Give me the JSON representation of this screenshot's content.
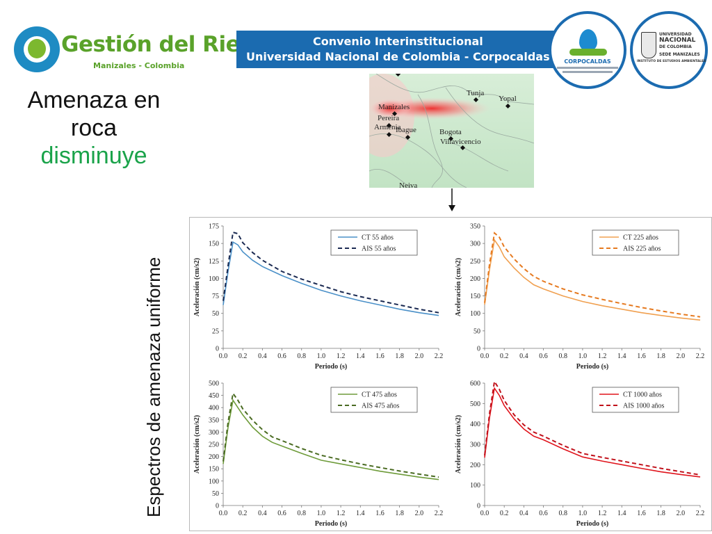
{
  "header": {
    "logo_title": "Gestión del Riesgo",
    "logo_subtitle": "Manizales - Colombia",
    "banner_line1": "Convenio Interinstitucional",
    "banner_line2": "Universidad Nacional de Colombia - Corpocaldas",
    "corpocaldas_label": "CORPOCALDAS",
    "unal_line1": "UNIVERSIDAD",
    "unal_line2": "NACIONAL",
    "unal_line3": "DE COLOMBIA",
    "unal_line4": "SEDE MANIZALES",
    "unal_line5": "INSTITUTO DE ESTUDIOS AMBIENTALES"
  },
  "headline": {
    "line1": "Amenaza en",
    "line2": "roca",
    "line3": "disminuye"
  },
  "vertical_label": "Espectros de amenaza uniforme",
  "map": {
    "cities": [
      "Tunja",
      "Yopal",
      "Manizales",
      "Pereira",
      "Armenia",
      "Ibague",
      "Bogota",
      "Villavicencio",
      "Neiva"
    ]
  },
  "colors": {
    "headline_green": "#1aa34a",
    "banner_blue": "#1b6bb0",
    "logo_green": "#5aa22a"
  },
  "chart_data": [
    {
      "type": "line",
      "xlabel": "Periodo (s)",
      "ylabel": "Aceleración (cm/s2)",
      "xlim": [
        0,
        2.2
      ],
      "ylim": [
        0,
        175
      ],
      "xticks": [
        "0.0",
        "0.2",
        "0.4",
        "0.6",
        "0.8",
        "1.0",
        "1.2",
        "1.4",
        "1.6",
        "1.8",
        "2.0",
        "2.2"
      ],
      "yticks": [
        "0",
        "25",
        "50",
        "75",
        "100",
        "125",
        "150",
        "175"
      ],
      "legend_position": "top-right",
      "series": [
        {
          "name": "CT 55 años",
          "color": "#4a90c8",
          "style": "solid",
          "x": [
            0,
            0.05,
            0.1,
            0.15,
            0.2,
            0.3,
            0.4,
            0.6,
            0.8,
            1.0,
            1.2,
            1.4,
            1.6,
            1.8,
            2.0,
            2.2
          ],
          "y": [
            62,
            110,
            152,
            148,
            138,
            126,
            117,
            104,
            93,
            83,
            75,
            68,
            62,
            56,
            51,
            47
          ]
        },
        {
          "name": "AIS 55 años",
          "color": "#1b2a52",
          "style": "dashed",
          "x": [
            0,
            0.05,
            0.1,
            0.15,
            0.2,
            0.3,
            0.4,
            0.6,
            0.8,
            1.0,
            1.2,
            1.4,
            1.6,
            1.8,
            2.0,
            2.2
          ],
          "y": [
            68,
            118,
            166,
            164,
            151,
            137,
            126,
            110,
            99,
            90,
            81,
            74,
            68,
            62,
            56,
            51
          ]
        }
      ]
    },
    {
      "type": "line",
      "xlabel": "Periodo (s)",
      "ylabel": "Aceleración (cm/s2)",
      "xlim": [
        0,
        2.2
      ],
      "ylim": [
        0,
        350
      ],
      "xticks": [
        "0.0",
        "0.2",
        "0.4",
        "0.6",
        "0.8",
        "1.0",
        "1.2",
        "1.4",
        "1.6",
        "1.8",
        "2.0",
        "2.2"
      ],
      "yticks": [
        "0",
        "50",
        "100",
        "150",
        "200",
        "250",
        "300",
        "350"
      ],
      "legend_position": "top-right",
      "series": [
        {
          "name": "CT 225 años",
          "color": "#f0a050",
          "style": "solid",
          "x": [
            0,
            0.05,
            0.1,
            0.15,
            0.2,
            0.3,
            0.4,
            0.5,
            0.6,
            0.8,
            1.0,
            1.2,
            1.4,
            1.6,
            1.8,
            2.0,
            2.2
          ],
          "y": [
            125,
            225,
            310,
            290,
            262,
            230,
            203,
            182,
            170,
            150,
            134,
            122,
            112,
            102,
            94,
            87,
            81
          ]
        },
        {
          "name": "AIS 225 años",
          "color": "#e67a20",
          "style": "dashed",
          "x": [
            0,
            0.05,
            0.1,
            0.15,
            0.2,
            0.3,
            0.4,
            0.5,
            0.6,
            0.8,
            1.0,
            1.2,
            1.4,
            1.6,
            1.8,
            2.0,
            2.2
          ],
          "y": [
            130,
            240,
            330,
            318,
            290,
            256,
            228,
            206,
            192,
            170,
            153,
            140,
            128,
            117,
            107,
            98,
            90
          ]
        }
      ]
    },
    {
      "type": "line",
      "xlabel": "Periodo (s)",
      "ylabel": "Aceleración (cm/s2)",
      "xlim": [
        0,
        2.2
      ],
      "ylim": [
        0,
        500
      ],
      "xticks": [
        "0.0",
        "0.2",
        "0.4",
        "0.6",
        "0.8",
        "1.0",
        "1.2",
        "1.4",
        "1.6",
        "1.8",
        "2.0",
        "2.2"
      ],
      "yticks": [
        "0",
        "50",
        "100",
        "150",
        "200",
        "250",
        "300",
        "350",
        "400",
        "450",
        "500"
      ],
      "legend_position": "top-right",
      "series": [
        {
          "name": "CT 475 años",
          "color": "#6e9b3a",
          "style": "solid",
          "x": [
            0,
            0.05,
            0.1,
            0.15,
            0.2,
            0.3,
            0.4,
            0.5,
            0.6,
            0.8,
            1.0,
            1.2,
            1.4,
            1.6,
            1.8,
            2.0,
            2.2
          ],
          "y": [
            170,
            320,
            430,
            400,
            370,
            320,
            283,
            258,
            243,
            213,
            185,
            170,
            155,
            140,
            128,
            116,
            106
          ]
        },
        {
          "name": "AIS 475 años",
          "color": "#4a6b22",
          "style": "dashed",
          "x": [
            0,
            0.05,
            0.1,
            0.15,
            0.2,
            0.3,
            0.4,
            0.5,
            0.6,
            0.8,
            1.0,
            1.2,
            1.4,
            1.6,
            1.8,
            2.0,
            2.2
          ],
          "y": [
            180,
            340,
            458,
            430,
            395,
            348,
            310,
            280,
            265,
            233,
            205,
            187,
            170,
            155,
            141,
            128,
            116
          ]
        }
      ]
    },
    {
      "type": "line",
      "xlabel": "Periodo (s)",
      "ylabel": "Aceleración (cm/s2)",
      "xlim": [
        0,
        2.2
      ],
      "ylim": [
        0,
        600
      ],
      "xticks": [
        "0.0",
        "0.2",
        "0.4",
        "0.6",
        "0.8",
        "1.0",
        "1.2",
        "1.4",
        "1.6",
        "1.8",
        "2.0",
        "2.2"
      ],
      "yticks": [
        "0",
        "100",
        "200",
        "300",
        "400",
        "500",
        "600"
      ],
      "legend_position": "top-right",
      "series": [
        {
          "name": "CT 1000 años",
          "color": "#e0141c",
          "style": "solid",
          "x": [
            0,
            0.05,
            0.1,
            0.15,
            0.2,
            0.3,
            0.4,
            0.5,
            0.6,
            0.8,
            1.0,
            1.2,
            1.4,
            1.6,
            1.8,
            2.0,
            2.2
          ],
          "y": [
            235,
            430,
            575,
            540,
            490,
            425,
            375,
            340,
            322,
            278,
            238,
            218,
            200,
            182,
            165,
            152,
            140
          ]
        },
        {
          "name": "AIS 1000 años",
          "color": "#c0101a",
          "style": "dashed",
          "x": [
            0,
            0.05,
            0.1,
            0.15,
            0.2,
            0.3,
            0.4,
            0.5,
            0.6,
            0.8,
            1.0,
            1.2,
            1.4,
            1.6,
            1.8,
            2.0,
            2.2
          ],
          "y": [
            245,
            450,
            608,
            570,
            515,
            445,
            395,
            360,
            340,
            295,
            255,
            236,
            218,
            200,
            182,
            166,
            150
          ]
        }
      ]
    }
  ]
}
